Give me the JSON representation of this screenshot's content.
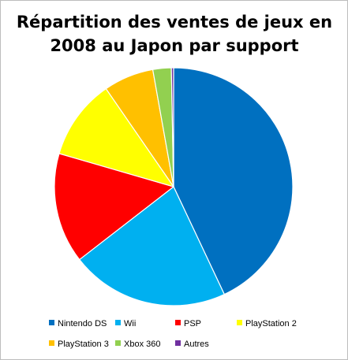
{
  "chart_data": {
    "type": "pie",
    "title": "Répartition des ventes de jeux en 2008 au Japon par support",
    "legend_position": "bottom",
    "start_angle_deg": 0,
    "direction": "clockwise",
    "slices": [
      {
        "name": "Nintendo DS",
        "value": 43.0,
        "color": "#0070c0"
      },
      {
        "name": "Wii",
        "value": 21.5,
        "color": "#00b0f0"
      },
      {
        "name": "PSP",
        "value": 15.0,
        "color": "#ff0000"
      },
      {
        "name": "PlayStation 2",
        "value": 10.9,
        "color": "#ffff00"
      },
      {
        "name": "PlayStation 3",
        "value": 6.8,
        "color": "#ffc000"
      },
      {
        "name": "Xbox 360",
        "value": 2.5,
        "color": "#92d050"
      },
      {
        "name": "Autres",
        "value": 0.3,
        "color": "#7030a0"
      }
    ]
  }
}
